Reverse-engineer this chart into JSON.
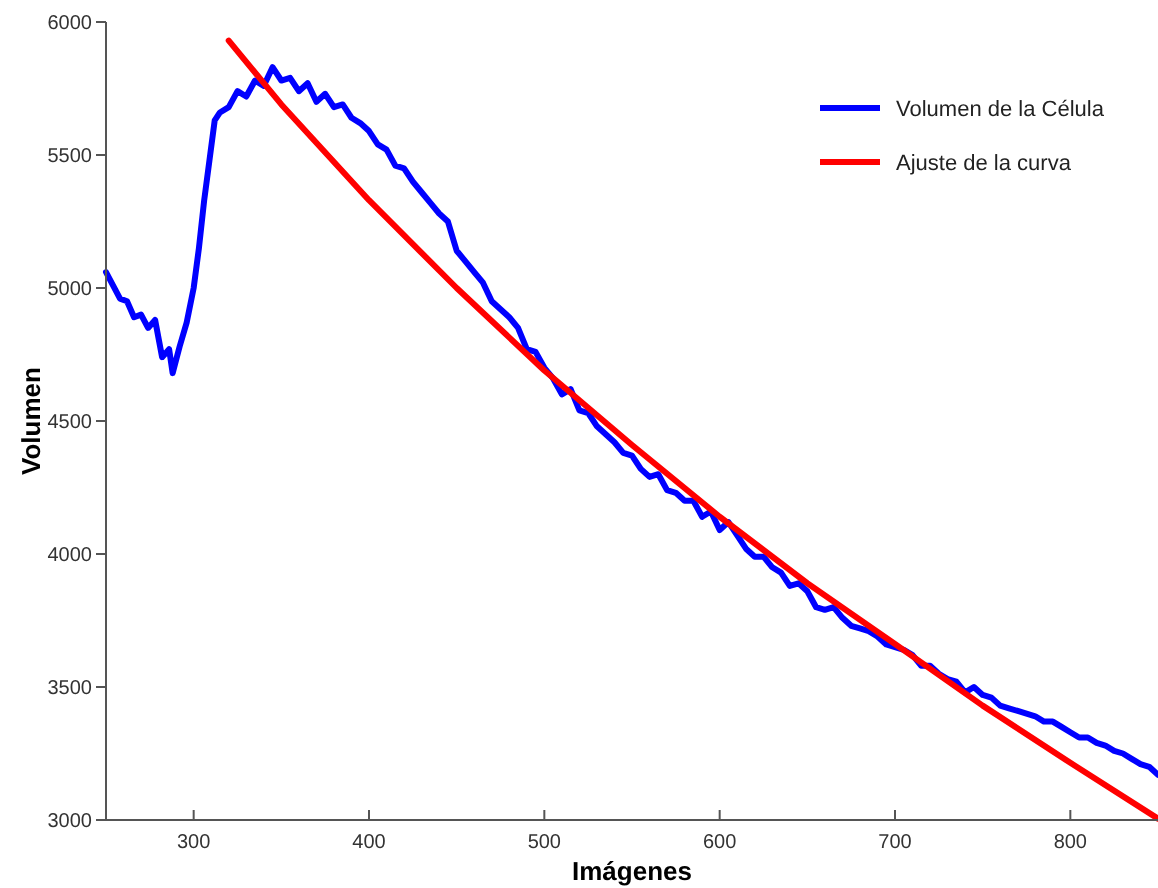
{
  "chart_data": {
    "type": "line",
    "xlabel": "Imágenes",
    "ylabel": "Volumen",
    "xlim": [
      250,
      850
    ],
    "ylim": [
      3000,
      6000
    ],
    "xticks": [
      300,
      400,
      500,
      600,
      700,
      800
    ],
    "yticks": [
      3000,
      3500,
      4000,
      4500,
      5000,
      5500,
      6000
    ],
    "grid": false,
    "legend": "top right",
    "marker": "none",
    "line_style": "solid",
    "series": [
      {
        "name": "Volumen de la Célula",
        "color": "#0000ff",
        "x": [
          250,
          254,
          258,
          262,
          266,
          270,
          274,
          278,
          282,
          286,
          288,
          292,
          296,
          300,
          303,
          306,
          309,
          312,
          315,
          320,
          325,
          330,
          335,
          340,
          345,
          350,
          355,
          360,
          365,
          370,
          375,
          380,
          385,
          390,
          395,
          400,
          405,
          410,
          415,
          420,
          425,
          430,
          435,
          440,
          445,
          450,
          455,
          460,
          465,
          470,
          475,
          480,
          485,
          490,
          495,
          500,
          505,
          510,
          515,
          520,
          525,
          530,
          535,
          540,
          545,
          550,
          555,
          560,
          565,
          570,
          575,
          580,
          585,
          590,
          595,
          600,
          605,
          610,
          615,
          620,
          625,
          630,
          635,
          640,
          645,
          650,
          655,
          660,
          665,
          670,
          675,
          680,
          685,
          690,
          695,
          700,
          705,
          710,
          715,
          720,
          725,
          730,
          735,
          740,
          745,
          750,
          755,
          760,
          765,
          770,
          775,
          780,
          785,
          790,
          795,
          800,
          805,
          810,
          815,
          820,
          825,
          830,
          835,
          840,
          845,
          850
        ],
        "values": [
          5060,
          5010,
          4960,
          4950,
          4890,
          4900,
          4850,
          4880,
          4740,
          4770,
          4680,
          4780,
          4870,
          5000,
          5150,
          5330,
          5480,
          5630,
          5660,
          5680,
          5740,
          5720,
          5780,
          5760,
          5830,
          5780,
          5790,
          5740,
          5770,
          5700,
          5730,
          5680,
          5690,
          5640,
          5620,
          5590,
          5540,
          5520,
          5460,
          5450,
          5400,
          5360,
          5320,
          5280,
          5250,
          5140,
          5100,
          5060,
          5020,
          4950,
          4920,
          4890,
          4850,
          4770,
          4760,
          4700,
          4660,
          4600,
          4620,
          4540,
          4530,
          4480,
          4450,
          4420,
          4380,
          4370,
          4320,
          4290,
          4300,
          4240,
          4230,
          4200,
          4200,
          4140,
          4160,
          4090,
          4120,
          4070,
          4020,
          3990,
          3990,
          3950,
          3930,
          3880,
          3890,
          3860,
          3800,
          3790,
          3800,
          3760,
          3730,
          3720,
          3710,
          3690,
          3660,
          3650,
          3640,
          3620,
          3580,
          3580,
          3550,
          3530,
          3520,
          3480,
          3500,
          3470,
          3460,
          3430,
          3420,
          3410,
          3400,
          3390,
          3370,
          3370,
          3350,
          3330,
          3310,
          3310,
          3290,
          3280,
          3260,
          3250,
          3230,
          3210,
          3200,
          3170
        ]
      },
      {
        "name": "Ajuste de la curva",
        "color": "#ff0000",
        "x": [
          320,
          350,
          400,
          450,
          500,
          550,
          600,
          650,
          700,
          750,
          800,
          850
        ],
        "values": [
          5930,
          5690,
          5330,
          5000,
          4690,
          4410,
          4140,
          3890,
          3662,
          3430,
          3215,
          3005
        ]
      }
    ]
  }
}
